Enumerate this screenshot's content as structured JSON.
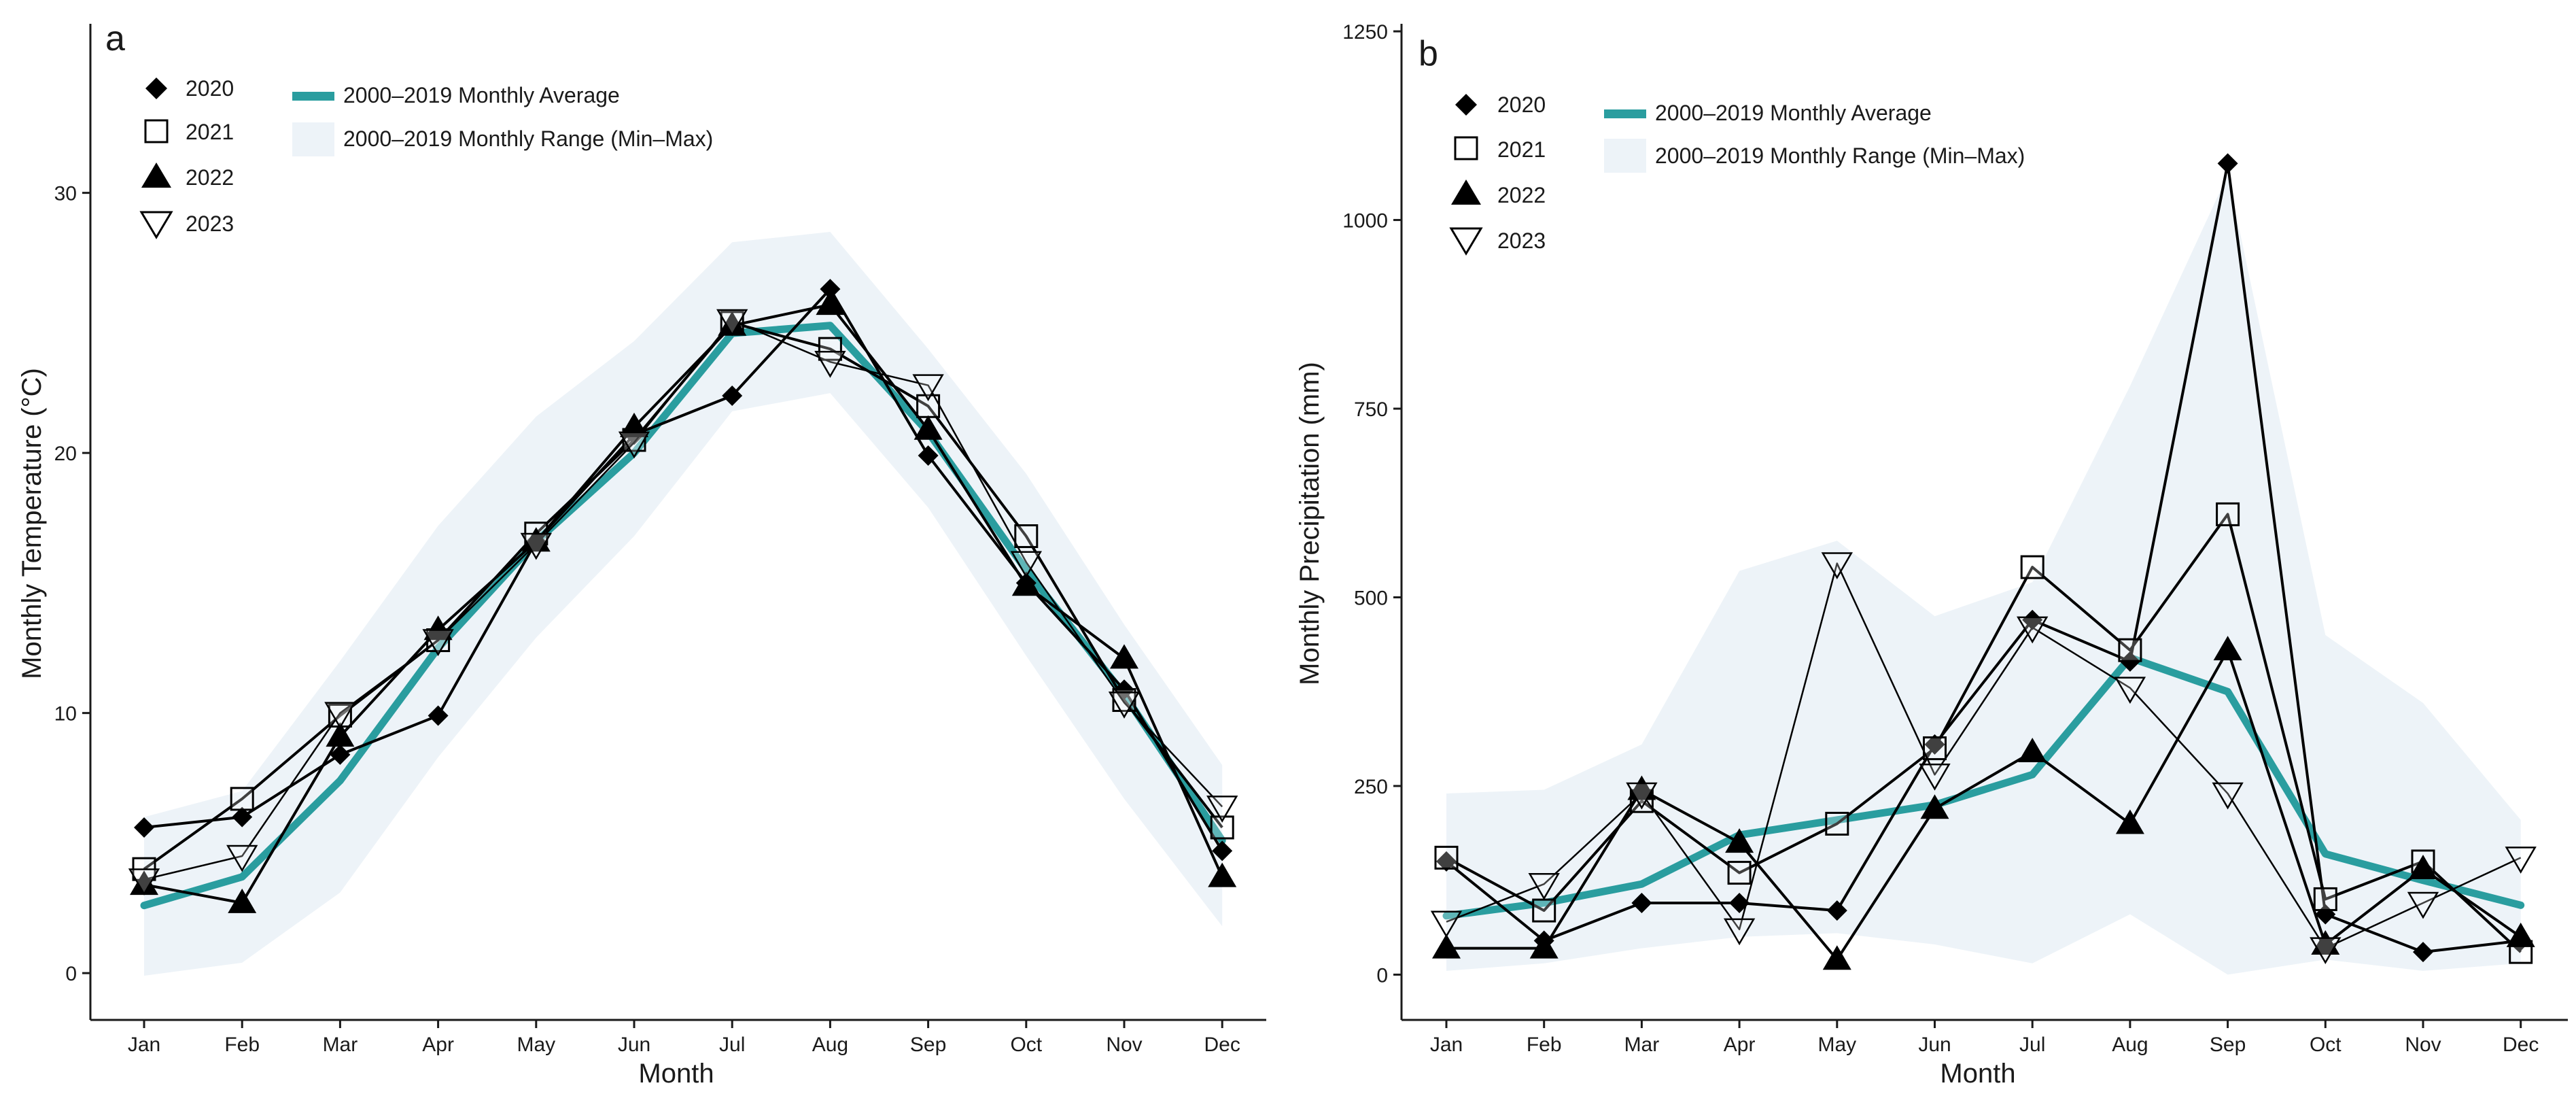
{
  "colors": {
    "average": "#2a9d9f",
    "range_fill": "#edf3f8",
    "marker": "#000000",
    "axis": "#1a1a1a"
  },
  "legend": {
    "years": [
      {
        "label": "2020",
        "marker": "diamond-filled"
      },
      {
        "label": "2021",
        "marker": "square-open"
      },
      {
        "label": "2022",
        "marker": "triangle-up-filled"
      },
      {
        "label": "2023",
        "marker": "triangle-down-open"
      }
    ],
    "average_label": "2000–2019  Monthly  Average",
    "range_label": "2000–2019  Monthly  Range  (Min–Max)"
  },
  "chart_data": [
    {
      "panel": "a",
      "type": "line",
      "xlabel": "Month",
      "ylabel": "Monthly Temperature (°C)",
      "categories": [
        "Jan",
        "Feb",
        "Mar",
        "Apr",
        "May",
        "Jun",
        "Jul",
        "Aug",
        "Sep",
        "Oct",
        "Nov",
        "Dec"
      ],
      "ylim": [
        -1.8,
        36.5
      ],
      "yticks": [
        0,
        10,
        20,
        30
      ],
      "series": [
        {
          "name": "2020",
          "values": [
            5.6,
            6.0,
            8.4,
            9.9,
            16.6,
            20.7,
            22.2,
            26.3,
            19.9,
            15.0,
            10.9,
            4.7
          ]
        },
        {
          "name": "2021",
          "values": [
            4.0,
            6.7,
            9.9,
            12.8,
            16.9,
            20.5,
            25.0,
            24.0,
            21.8,
            16.8,
            10.5,
            5.6
          ]
        },
        {
          "name": "2022",
          "values": [
            3.4,
            2.7,
            9.1,
            13.2,
            16.6,
            21.0,
            24.9,
            25.7,
            20.9,
            14.9,
            12.1,
            3.7
          ]
        },
        {
          "name": "2023",
          "values": [
            3.6,
            4.5,
            10.0,
            12.8,
            16.5,
            20.4,
            25.1,
            23.5,
            22.6,
            15.8,
            10.4,
            6.4
          ]
        }
      ],
      "average": [
        2.6,
        3.7,
        7.4,
        12.5,
        16.6,
        20.0,
        24.6,
        24.9,
        20.8,
        15.5,
        10.7,
        5.1
      ],
      "range_min": [
        -0.1,
        0.4,
        3.1,
        8.3,
        12.9,
        16.8,
        21.6,
        22.3,
        17.9,
        12.2,
        6.7,
        1.8
      ],
      "range_max": [
        6.0,
        7.0,
        12.0,
        17.2,
        21.4,
        24.3,
        28.1,
        28.5,
        24.0,
        19.2,
        13.4,
        8.0
      ]
    },
    {
      "panel": "b",
      "type": "line",
      "xlabel": "Month",
      "ylabel": "Monthly Precipitation (mm)",
      "categories": [
        "Jan",
        "Feb",
        "Mar",
        "Apr",
        "May",
        "Jun",
        "Jul",
        "Aug",
        "Sep",
        "Oct",
        "Nov",
        "Dec"
      ],
      "ylim": [
        -60,
        1260
      ],
      "yticks": [
        0,
        250,
        500,
        750,
        1000,
        1250
      ],
      "series": [
        {
          "name": "2020",
          "values": [
            150,
            45,
            95,
            95,
            85,
            305,
            470,
            415,
            1075,
            80,
            30,
            45
          ]
        },
        {
          "name": "2021",
          "values": [
            155,
            85,
            230,
            135,
            200,
            300,
            540,
            430,
            610,
            100,
            150,
            30
          ]
        },
        {
          "name": "2022",
          "values": [
            35,
            35,
            245,
            175,
            20,
            220,
            295,
            200,
            430,
            40,
            140,
            50
          ]
        },
        {
          "name": "2023",
          "values": [
            70,
            120,
            240,
            60,
            545,
            265,
            460,
            380,
            240,
            35,
            95,
            155
          ]
        }
      ],
      "average": [
        78,
        95,
        120,
        185,
        205,
        225,
        265,
        420,
        375,
        160,
        125,
        92
      ],
      "range_min": [
        5,
        15,
        35,
        50,
        55,
        40,
        15,
        80,
        0,
        20,
        5,
        15
      ],
      "range_max": [
        240,
        245,
        305,
        535,
        575,
        475,
        520,
        780,
        1060,
        450,
        360,
        205
      ]
    }
  ]
}
